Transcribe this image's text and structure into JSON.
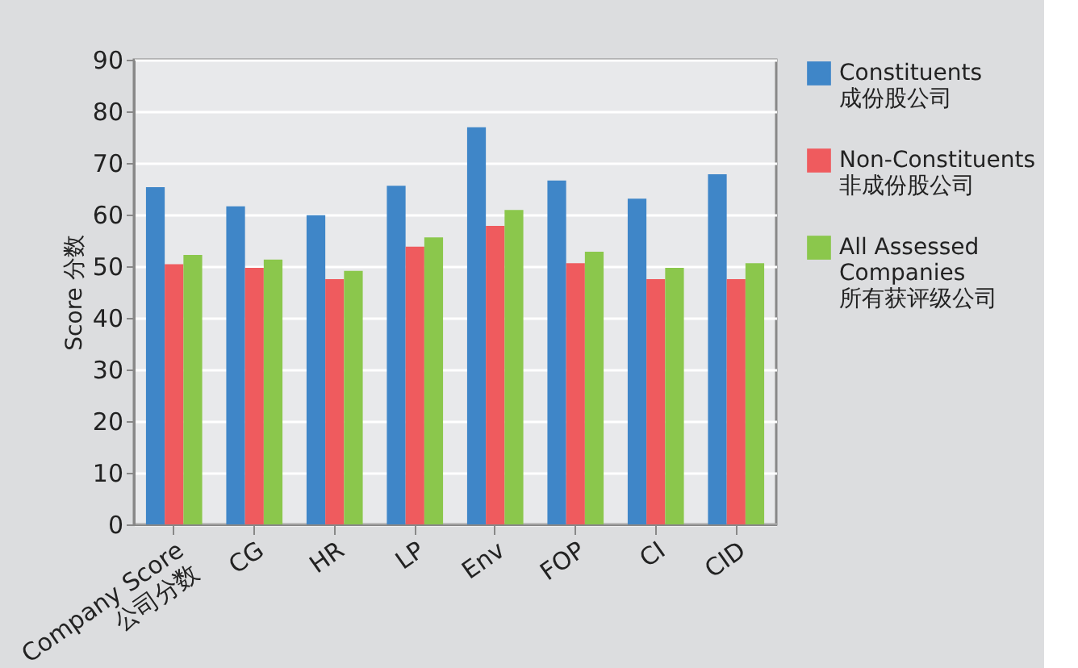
{
  "chart_data": {
    "type": "bar",
    "ylabel": "Score 分数",
    "categories": [
      "Company Score\n公司分数",
      "CG",
      "HR",
      "LP",
      "Env",
      "FOP",
      "CI",
      "CID"
    ],
    "series": [
      {
        "name": "Constituents\n成份股公司",
        "color": "#3f86c8",
        "values": [
          65.3,
          61.6,
          59.9,
          65.6,
          76.9,
          66.6,
          63.1,
          67.8
        ]
      },
      {
        "name": "Non-Constituents\n非成份股公司",
        "color": "#ef5b5e",
        "values": [
          50.4,
          49.7,
          47.5,
          53.8,
          57.8,
          50.6,
          47.5,
          47.5
        ]
      },
      {
        "name": "All Assessed\nCompanies\n所有获评级公司",
        "color": "#8bc74c",
        "values": [
          52.2,
          51.3,
          49.1,
          55.6,
          60.9,
          52.8,
          49.7,
          50.6
        ]
      }
    ],
    "ylim": [
      0,
      90
    ],
    "yticks": [
      0,
      10,
      20,
      30,
      40,
      50,
      60,
      70,
      80,
      90
    ],
    "grid": "y",
    "legend": "right"
  }
}
